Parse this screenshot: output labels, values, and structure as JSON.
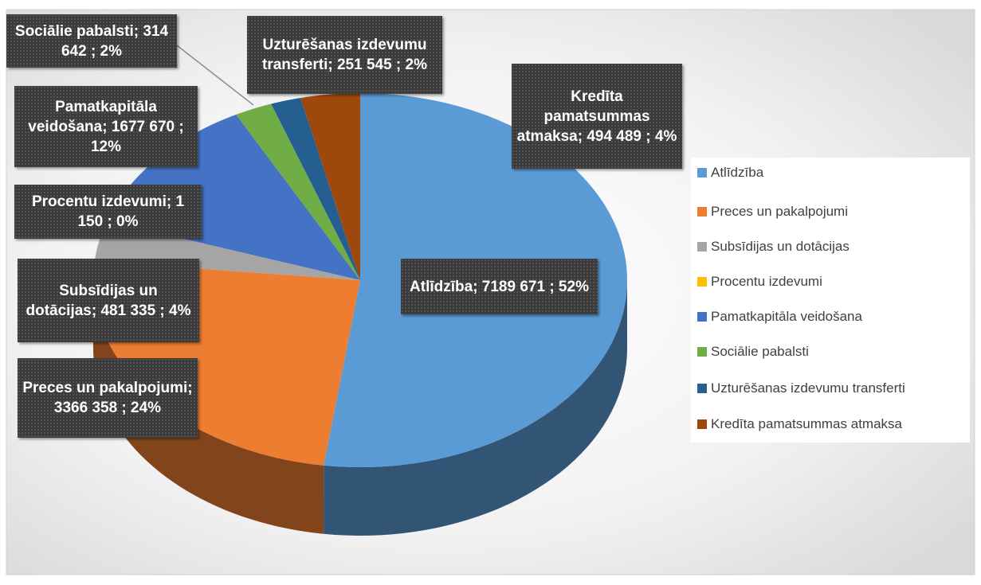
{
  "chart_data": {
    "type": "pie",
    "style": "3d",
    "categories": [
      "Atlīdzība",
      "Preces un pakalpojumi",
      "Subsīdijas un dotācijas",
      "Procentu izdevumi",
      "Pamatkapitāla veidošana",
      "Sociālie pabalsti",
      "Uzturēšanas izdevumu transferti",
      "Kredīta pamatsummas atmaksa"
    ],
    "values": [
      7189671,
      3366358,
      481335,
      1150,
      1677670,
      314642,
      251545,
      494489
    ],
    "value_labels": [
      "Atlīdzība;  7189 671 ; 52%",
      "Preces un pakalpojumi;  3366 358 ; 24%",
      "Subsīdijas un dotācijas;  481 335 ; 4%",
      "Procentu izdevumi; 1 150 ; 0%",
      "Pamatkapitāla veidošana;  1677 670 ; 12%",
      "Sociālie pabalsti; 314 642 ; 2%",
      "Uzturēšanas izdevumu transferti; 251 545 ; 2%",
      "Kredīta pamatsummas atmaksa;  494 489 ; 4%"
    ],
    "colors": [
      "#5b9bd5",
      "#ed7d31",
      "#a5a5a5",
      "#ffc000",
      "#4472c4",
      "#70ad47",
      "#255e91",
      "#9e480e"
    ],
    "legend": "right"
  }
}
